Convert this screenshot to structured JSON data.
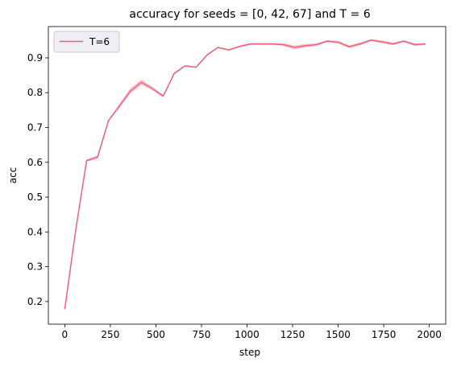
{
  "chart_data": {
    "type": "line",
    "title": "accuracy for seeds = [0, 42, 67] and T = 6",
    "xlabel": "step",
    "ylabel": "acc",
    "xlim": [
      -90,
      2090
    ],
    "ylim": [
      0.135,
      0.99
    ],
    "xticks": [
      0,
      250,
      500,
      750,
      1000,
      1250,
      1500,
      1750,
      2000
    ],
    "yticks": [
      0.2,
      0.3,
      0.4,
      0.5,
      0.6,
      0.7,
      0.8,
      0.9
    ],
    "xtick_labels": [
      "0",
      "250",
      "500",
      "750",
      "1000",
      "1250",
      "1500",
      "1750",
      "2000"
    ],
    "ytick_labels": [
      "0.2",
      "0.3",
      "0.4",
      "0.5",
      "0.6",
      "0.7",
      "0.8",
      "0.9"
    ],
    "grid": false,
    "legend": {
      "position": "top-left",
      "entries": [
        "T=6"
      ]
    },
    "colors": {
      "line": "#f0607a",
      "band": "#f7b3c0"
    },
    "series": [
      {
        "name": "T=6",
        "x": [
          0,
          60,
          120,
          180,
          240,
          300,
          360,
          420,
          480,
          540,
          600,
          660,
          720,
          780,
          840,
          900,
          960,
          1020,
          1080,
          1140,
          1200,
          1260,
          1320,
          1380,
          1440,
          1500,
          1560,
          1620,
          1680,
          1740,
          1800,
          1860,
          1920,
          1980
        ],
        "y": [
          0.178,
          0.405,
          0.605,
          0.615,
          0.72,
          0.762,
          0.805,
          0.83,
          0.812,
          0.79,
          0.855,
          0.877,
          0.873,
          0.908,
          0.93,
          0.923,
          0.933,
          0.94,
          0.94,
          0.94,
          0.938,
          0.93,
          0.935,
          0.938,
          0.948,
          0.945,
          0.932,
          0.94,
          0.951,
          0.946,
          0.94,
          0.948,
          0.938,
          0.94
        ],
        "y_lower": [
          0.177,
          0.404,
          0.602,
          0.609,
          0.718,
          0.756,
          0.797,
          0.822,
          0.807,
          0.786,
          0.852,
          0.875,
          0.871,
          0.905,
          0.928,
          0.921,
          0.93,
          0.937,
          0.937,
          0.937,
          0.934,
          0.924,
          0.93,
          0.934,
          0.945,
          0.941,
          0.928,
          0.936,
          0.948,
          0.942,
          0.936,
          0.945,
          0.934,
          0.937
        ],
        "y_upper": [
          0.179,
          0.406,
          0.608,
          0.621,
          0.722,
          0.768,
          0.813,
          0.838,
          0.817,
          0.794,
          0.858,
          0.879,
          0.875,
          0.911,
          0.932,
          0.925,
          0.936,
          0.943,
          0.943,
          0.943,
          0.942,
          0.936,
          0.94,
          0.942,
          0.951,
          0.949,
          0.936,
          0.944,
          0.954,
          0.95,
          0.944,
          0.951,
          0.942,
          0.943
        ]
      }
    ]
  }
}
